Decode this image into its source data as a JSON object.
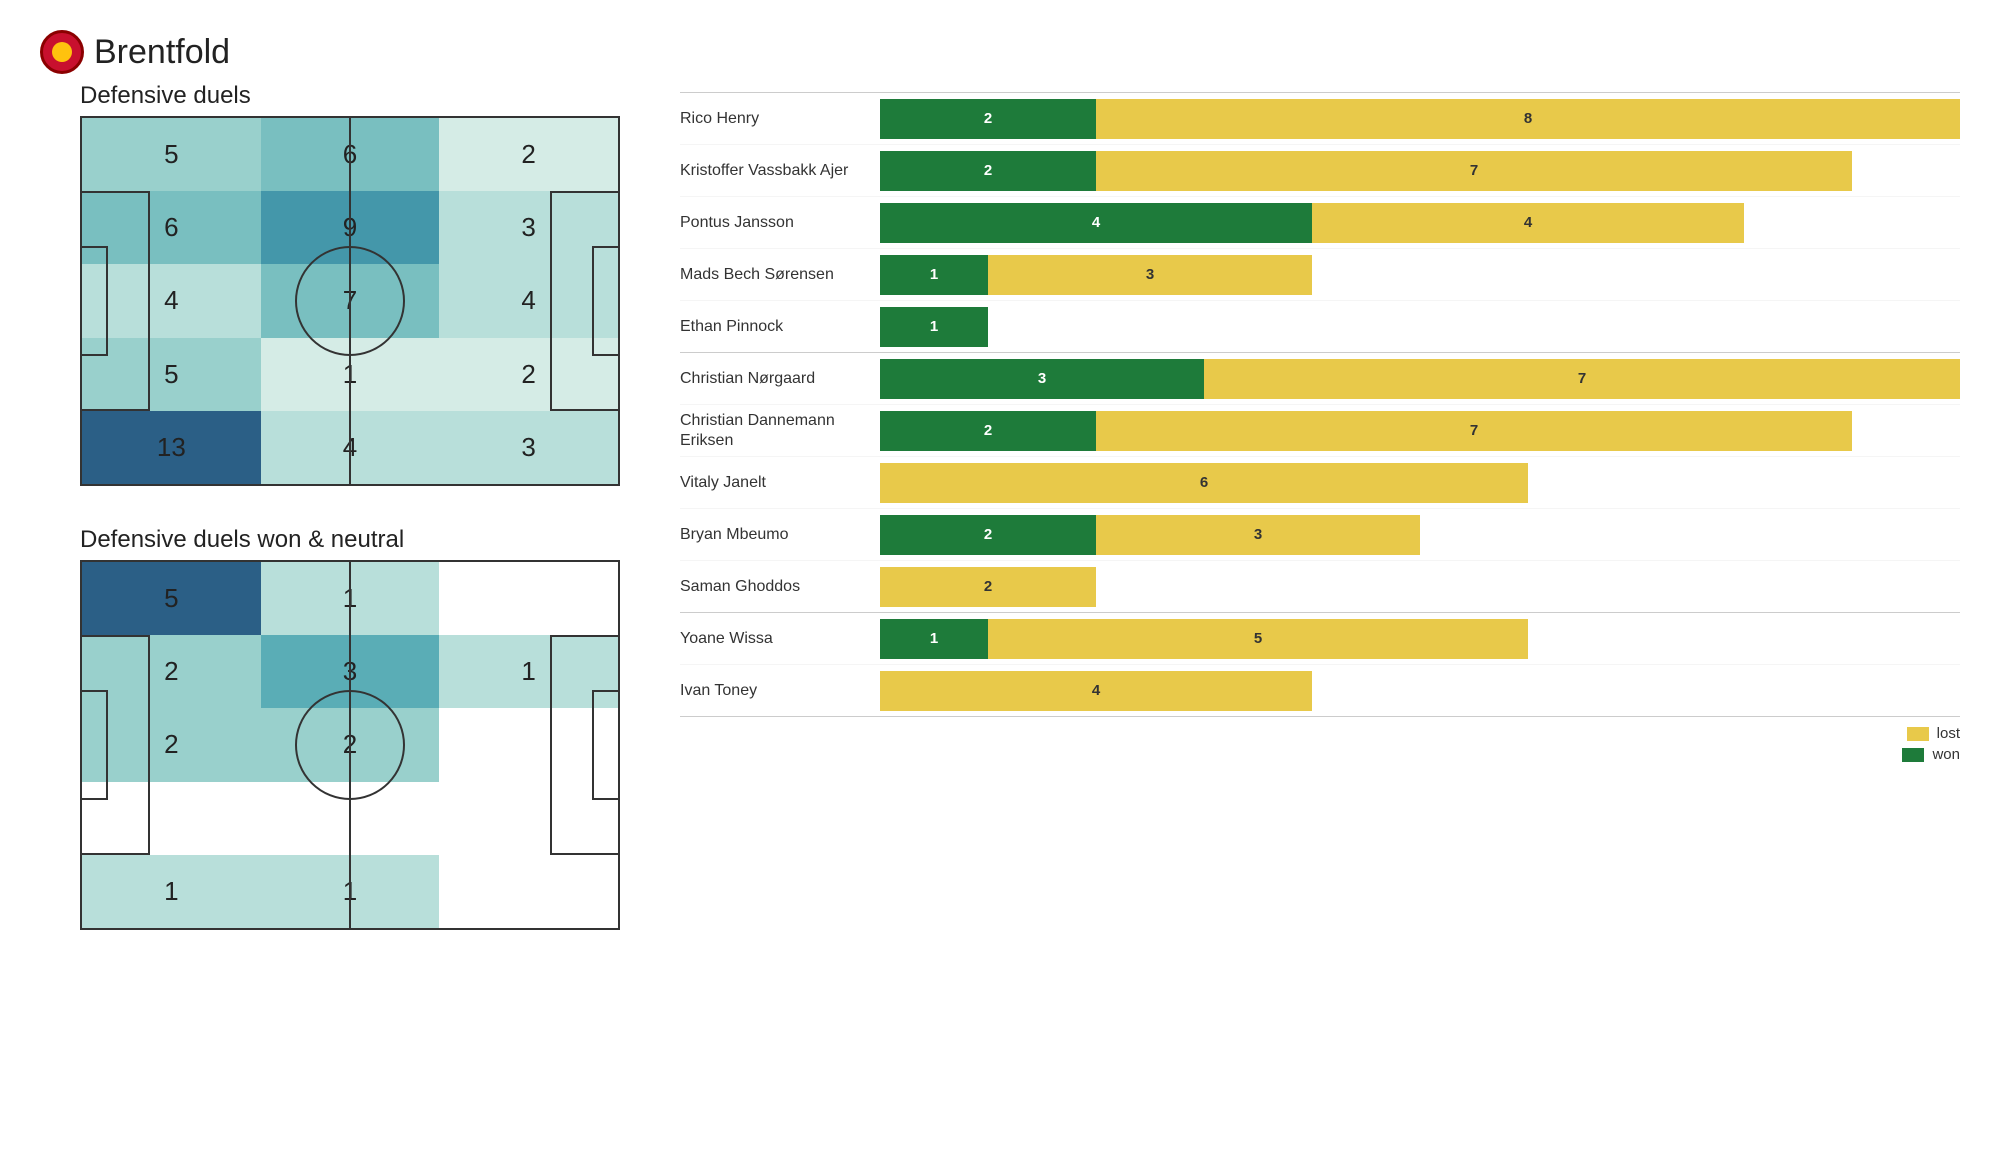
{
  "team": "Brentfold",
  "colors": {
    "won": "#1e7b3a",
    "lost": "#e8c94a",
    "text_on_won": "#ffffff",
    "text_on_lost": "#333333",
    "border": "#333333",
    "heatmap_scale": [
      "#ffffff",
      "#d5ece6",
      "#b8dfda",
      "#99d0cc",
      "#79bfc0",
      "#5aadb6",
      "#4497aa",
      "#357f9d",
      "#2b5f86"
    ]
  },
  "heatmaps": {
    "duels": {
      "title": "Defensive duels",
      "rows": 5,
      "cols": 3,
      "max": 13,
      "cells": [
        {
          "v": 5
        },
        {
          "v": 6
        },
        {
          "v": 2
        },
        {
          "v": 6
        },
        {
          "v": 9
        },
        {
          "v": 3
        },
        {
          "v": 4
        },
        {
          "v": 7
        },
        {
          "v": 4
        },
        {
          "v": 5
        },
        {
          "v": 1
        },
        {
          "v": 2
        },
        {
          "v": 13
        },
        {
          "v": 4
        },
        {
          "v": 3
        }
      ]
    },
    "won": {
      "title": "Defensive duels won & neutral",
      "rows": 5,
      "cols": 3,
      "max": 5,
      "cells": [
        {
          "v": 5
        },
        {
          "v": 1
        },
        {
          "v": null
        },
        {
          "v": 2
        },
        {
          "v": 3
        },
        {
          "v": 1
        },
        {
          "v": 2
        },
        {
          "v": 2
        },
        {
          "v": null
        },
        {
          "v": null
        },
        {
          "v": null
        },
        {
          "v": null
        },
        {
          "v": 1
        },
        {
          "v": 1
        },
        {
          "v": null
        }
      ]
    }
  },
  "bars": {
    "max_total": 10,
    "legend": {
      "lost": "lost",
      "won": "won"
    },
    "groups": [
      [
        {
          "name": "Rico Henry",
          "won": 2,
          "lost": 8
        },
        {
          "name": "Kristoffer Vassbakk Ajer",
          "won": 2,
          "lost": 7
        },
        {
          "name": "Pontus Jansson",
          "won": 4,
          "lost": 4
        },
        {
          "name": "Mads Bech Sørensen",
          "won": 1,
          "lost": 3
        },
        {
          "name": "Ethan Pinnock",
          "won": 1,
          "lost": 0
        }
      ],
      [
        {
          "name": "Christian Nørgaard",
          "won": 3,
          "lost": 7
        },
        {
          "name": "Christian Dannemann Eriksen",
          "won": 2,
          "lost": 7
        },
        {
          "name": "Vitaly Janelt",
          "won": 0,
          "lost": 6
        },
        {
          "name": "Bryan Mbeumo",
          "won": 2,
          "lost": 3
        },
        {
          "name": "Saman Ghoddos",
          "won": 0,
          "lost": 2
        }
      ],
      [
        {
          "name": "Yoane Wissa",
          "won": 1,
          "lost": 5
        },
        {
          "name": "Ivan Toney",
          "won": 0,
          "lost": 4
        }
      ]
    ]
  }
}
